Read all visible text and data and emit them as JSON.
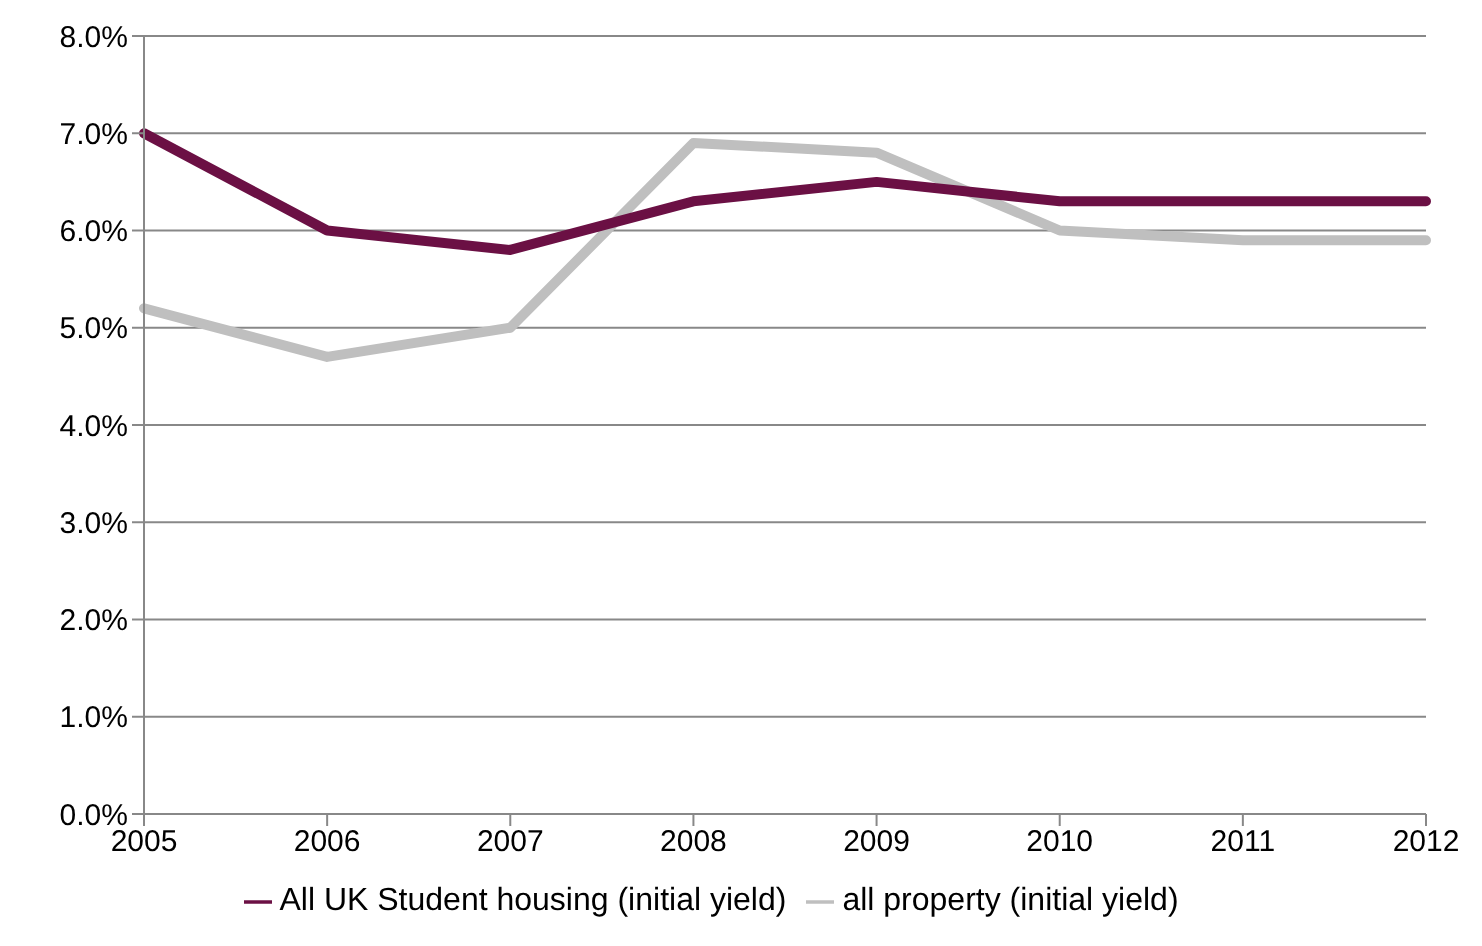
{
  "chart_data": {
    "type": "line",
    "categories": [
      "2005",
      "2006",
      "2007",
      "2008",
      "2009",
      "2010",
      "2011",
      "2012"
    ],
    "series": [
      {
        "name": "all property (initial yield)",
        "color": "#bfbfbf",
        "values": [
          5.2,
          4.7,
          5.0,
          6.9,
          6.8,
          6.0,
          5.9,
          5.9
        ]
      },
      {
        "name": "All UK Student housing (initial yield)",
        "color": "#6b1044",
        "values": [
          7.0,
          6.0,
          5.8,
          6.3,
          6.5,
          6.3,
          6.3,
          6.3
        ]
      }
    ],
    "ylim": [
      0,
      8
    ],
    "yticks": [
      {
        "value": 0,
        "label": "0.0%"
      },
      {
        "value": 1,
        "label": "1.0%"
      },
      {
        "value": 2,
        "label": "2.0%"
      },
      {
        "value": 3,
        "label": "3.0%"
      },
      {
        "value": 4,
        "label": "4.0%"
      },
      {
        "value": 5,
        "label": "5.0%"
      },
      {
        "value": 6,
        "label": "6.0%"
      },
      {
        "value": 7,
        "label": "7.0%"
      },
      {
        "value": 8,
        "label": "8.0%"
      }
    ],
    "grid": "y",
    "legend": "bottom",
    "marker": "none",
    "line_style": "solid"
  }
}
